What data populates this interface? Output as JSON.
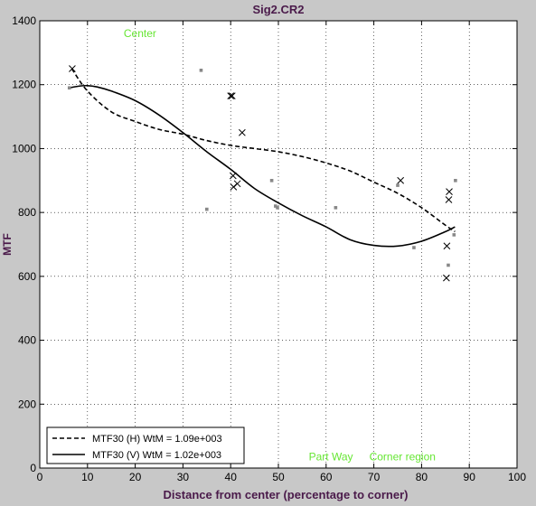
{
  "chart_data": {
    "type": "scatter",
    "title": "Sig2.CR2",
    "xlabel": "Distance from center (percentage to corner)",
    "ylabel": "MTF",
    "xlim": [
      0,
      100
    ],
    "ylim": [
      0,
      1400
    ],
    "xticks": [
      "0",
      "10",
      "20",
      "30",
      "40",
      "50",
      "60",
      "70",
      "80",
      "90",
      "100"
    ],
    "yticks": [
      "0",
      "200",
      "400",
      "600",
      "800",
      "1000",
      "1200",
      "1400"
    ],
    "grid": true,
    "legend_placement": "bottom-left",
    "annotations": [
      {
        "text": "Center",
        "x": 21,
        "y": 1360
      },
      {
        "text": "Part Way",
        "x": 61,
        "y": 35
      },
      {
        "text": "Corner region",
        "x": 76,
        "y": 35
      }
    ],
    "series": [
      {
        "name": "MTF30 (H)  WtM = 1.09e+003",
        "role": "fit",
        "line_style": "dashed",
        "color": "#000000",
        "x": [
          6.7,
          10,
          15,
          20,
          25,
          30,
          35,
          40,
          45,
          50,
          55,
          60,
          65,
          70,
          75,
          80,
          85,
          87
        ],
        "y": [
          1250,
          1180,
          1115,
          1085,
          1060,
          1045,
          1025,
          1010,
          1000,
          990,
          975,
          955,
          930,
          895,
          860,
          815,
          760,
          740
        ]
      },
      {
        "name": "MTF30 (V)  WtM = 1.02e+003",
        "role": "fit",
        "line_style": "solid",
        "color": "#000000",
        "x": [
          6.2,
          8,
          10,
          12,
          15,
          20,
          25,
          30,
          35,
          40,
          45,
          50,
          55,
          60,
          65,
          70,
          75,
          80,
          85,
          87
        ],
        "y": [
          1190,
          1195,
          1197,
          1193,
          1180,
          1150,
          1105,
          1050,
          990,
          935,
          875,
          830,
          790,
          755,
          715,
          697,
          695,
          710,
          740,
          755
        ]
      },
      {
        "role": "points",
        "marker": "x",
        "color": "#000000",
        "x": [
          6.8,
          40.0,
          40.3,
          40.5,
          40.6,
          41.4,
          42.4,
          75.6,
          85.2,
          85.3,
          85.7,
          85.8
        ],
        "y": [
          1250,
          1165,
          1165,
          915,
          880,
          890,
          1050,
          900,
          595,
          695,
          840,
          865
        ]
      },
      {
        "role": "points",
        "marker": "dot",
        "color": "#888888",
        "x": [
          6.2,
          33.8,
          35.0,
          48.6,
          49.4,
          49.8,
          62.0,
          75.0,
          78.4,
          85.6,
          86.8,
          87.1
        ],
        "y": [
          1190,
          1245,
          810,
          900,
          820,
          815,
          815,
          885,
          690,
          635,
          730,
          900
        ]
      }
    ]
  }
}
